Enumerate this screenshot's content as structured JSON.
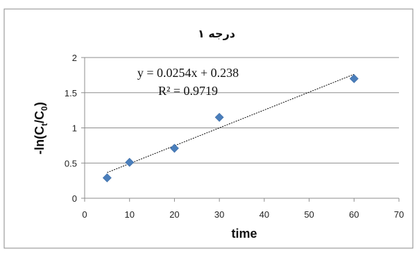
{
  "chart_data": {
    "type": "scatter",
    "title": "درجه ۱",
    "xlabel": "time",
    "ylabel_main": "-ln(C",
    "ylabel_sub1": "t",
    "ylabel_mid": "/C",
    "ylabel_sub2": "0",
    "ylabel_end": ")",
    "xlim": [
      0,
      70
    ],
    "ylim": [
      0,
      2
    ],
    "xticks": [
      0,
      10,
      20,
      30,
      40,
      50,
      60,
      70
    ],
    "yticks": [
      0,
      0.5,
      1,
      1.5,
      2
    ],
    "xtick_labels": [
      "0",
      "10",
      "20",
      "30",
      "40",
      "50",
      "60",
      "70"
    ],
    "ytick_labels": [
      "0",
      "0.5",
      "1",
      "1.5",
      "2"
    ],
    "grid": "horizontal",
    "points": [
      {
        "x": 5,
        "y": 0.29
      },
      {
        "x": 10,
        "y": 0.51
      },
      {
        "x": 20,
        "y": 0.71
      },
      {
        "x": 30,
        "y": 1.15
      },
      {
        "x": 60,
        "y": 1.7
      }
    ],
    "trendline": {
      "slope": 0.0254,
      "intercept": 0.238,
      "x_start": 5,
      "x_end": 60
    },
    "equation_text": "y = 0.0254x + 0.238",
    "r2_text": "R² = 0.9719",
    "colors": {
      "marker": "#4a7ebb",
      "trendline": "#000000",
      "grid": "#8c8c8c",
      "border": "#888888"
    }
  }
}
